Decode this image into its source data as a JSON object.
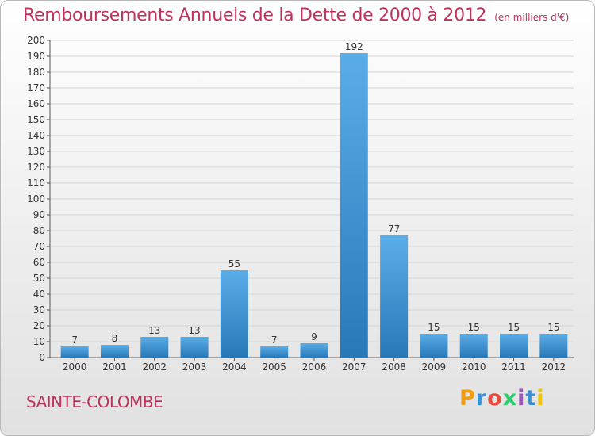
{
  "header": {
    "title": "Remboursements Annuels de la Dette de 2000 à 2012",
    "subtitle": "(en milliers d'€)"
  },
  "footer": {
    "town": "SAINTE-COLOMBE",
    "brand": "Proxiti",
    "brand_letters": [
      {
        "ch": "P",
        "color": "#f39c12"
      },
      {
        "ch": "r",
        "color": "#3a8fd8"
      },
      {
        "ch": "o",
        "color": "#e74c3c"
      },
      {
        "ch": "x",
        "color": "#2ecc71"
      },
      {
        "ch": "i",
        "color": "#9b59b6"
      },
      {
        "ch": "t",
        "color": "#3a8fd8"
      },
      {
        "ch": "i",
        "color": "#f1c40f"
      }
    ]
  },
  "colors": {
    "accent": "#c1325a",
    "bar_top": "#5aaee8",
    "bar_bottom": "#2878b8",
    "grid": "#d4d4d4",
    "text": "#333333"
  },
  "chart_data": {
    "type": "bar",
    "title": "Remboursements Annuels de la Dette de 2000 à 2012",
    "subtitle": "(en milliers d'€)",
    "xlabel": "",
    "ylabel": "",
    "categories": [
      "2000",
      "2001",
      "2002",
      "2003",
      "2004",
      "2005",
      "2006",
      "2007",
      "2008",
      "2009",
      "2010",
      "2011",
      "2012"
    ],
    "values": [
      7,
      8,
      13,
      13,
      55,
      7,
      9,
      192,
      77,
      15,
      15,
      15,
      15
    ],
    "ylim": [
      0,
      200
    ],
    "ytick_step": 10,
    "grid": true,
    "data_labels": true
  }
}
